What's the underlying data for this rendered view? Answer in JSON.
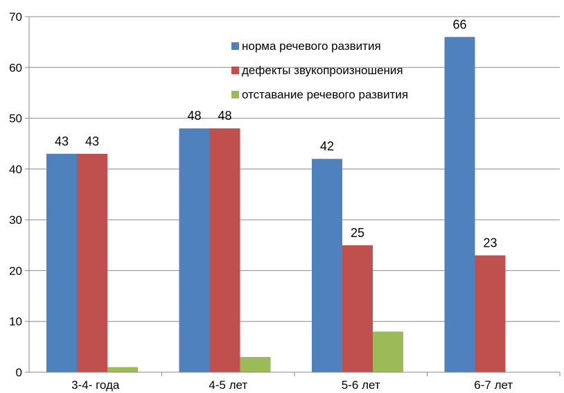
{
  "chart_data": {
    "type": "bar",
    "categories": [
      "3-4- года",
      "4-5 лет",
      "5-6 лет",
      "6-7 лет"
    ],
    "series": [
      {
        "name": "норма речевого развития",
        "values": [
          43,
          48,
          42,
          66
        ],
        "color": "#4f81bd"
      },
      {
        "name": "дефекты звукопроизношения",
        "values": [
          43,
          48,
          25,
          23
        ],
        "color": "#c0504d"
      },
      {
        "name": "отставание речевого развития",
        "values": [
          1,
          3,
          8,
          null
        ],
        "color": "#9bbb59"
      }
    ],
    "data_labels": {
      "norma": [
        "43",
        "48",
        "42",
        "66"
      ],
      "defekty": [
        "43",
        "48",
        "25",
        "23"
      ]
    },
    "yticks": [
      "0",
      "10",
      "20",
      "30",
      "40",
      "50",
      "60",
      "70"
    ],
    "ylim": [
      0,
      70
    ],
    "grid": true,
    "legend_position": "top-center",
    "gridline_color": "#878787",
    "axis_color": "#878787"
  }
}
